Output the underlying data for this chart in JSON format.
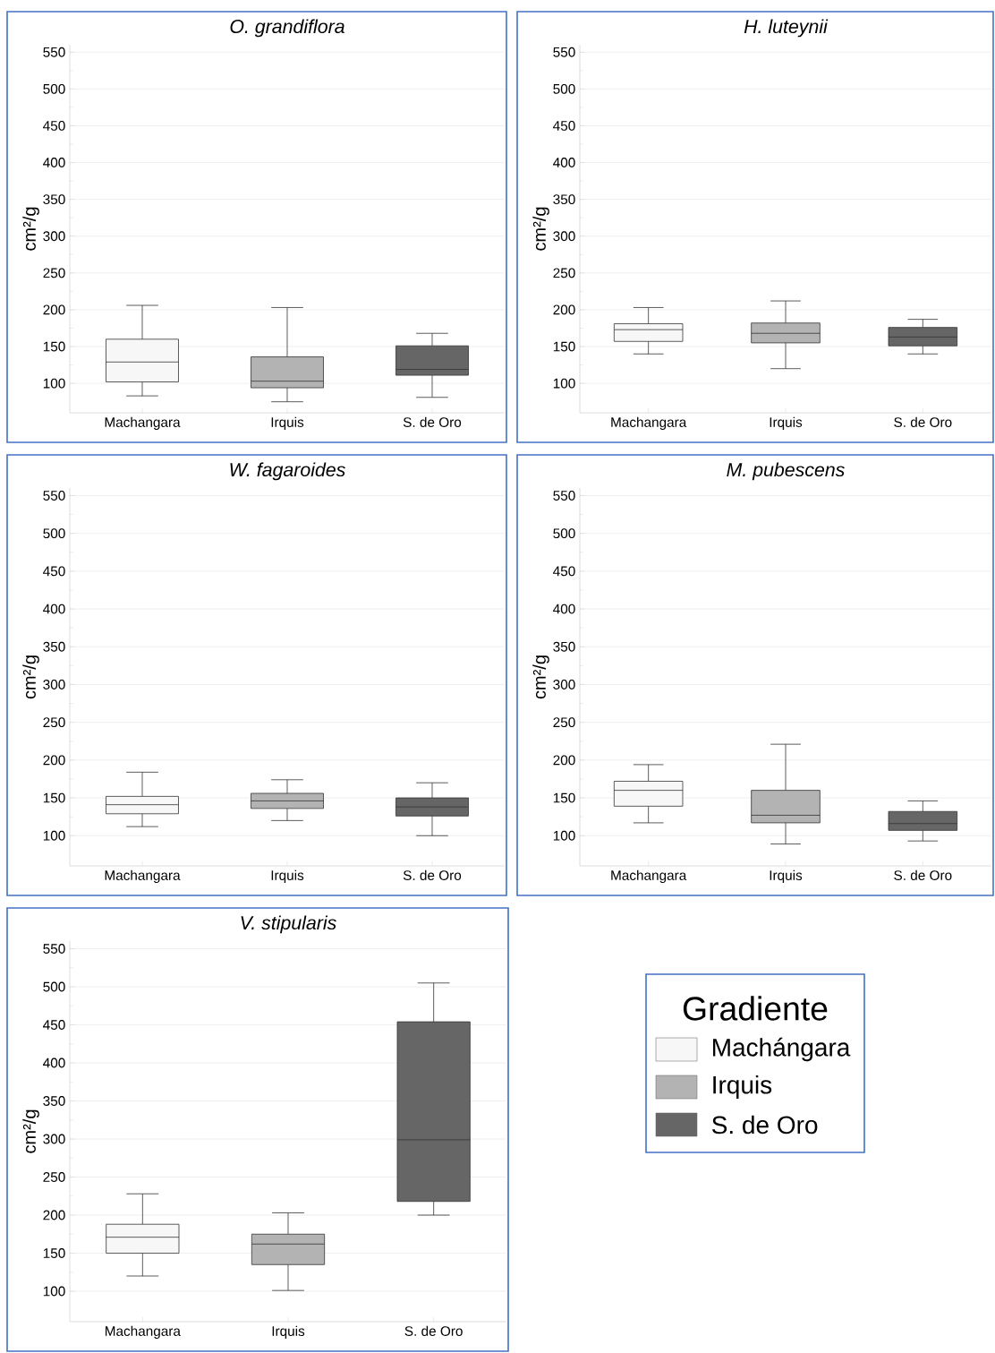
{
  "chart_data": [
    {
      "type": "box",
      "title": "O. grandiflora",
      "ylabel": "cm²/g",
      "categories": [
        "Machangara",
        "Irquis",
        "S. de Oro"
      ],
      "colors": [
        "#f7f7f7",
        "#b3b3b3",
        "#666666"
      ],
      "ylim": [
        60,
        560
      ],
      "yticks": [
        100,
        150,
        200,
        250,
        300,
        350,
        400,
        450,
        500,
        550
      ],
      "grid": "y",
      "boxes": [
        {
          "low": 83,
          "q1": 102,
          "median": 129,
          "q3": 160,
          "high": 206
        },
        {
          "low": 75,
          "q1": 94,
          "median": 103,
          "q3": 136,
          "high": 203
        },
        {
          "low": 81,
          "q1": 111,
          "median": 119,
          "q3": 151,
          "high": 168
        }
      ]
    },
    {
      "type": "box",
      "title": "H. luteynii",
      "ylabel": "cm²/g",
      "categories": [
        "Machangara",
        "Irquis",
        "S. de Oro"
      ],
      "colors": [
        "#f7f7f7",
        "#b3b3b3",
        "#666666"
      ],
      "ylim": [
        60,
        560
      ],
      "yticks": [
        100,
        150,
        200,
        250,
        300,
        350,
        400,
        450,
        500,
        550
      ],
      "grid": "y",
      "boxes": [
        {
          "low": 140,
          "q1": 157,
          "median": 173,
          "q3": 181,
          "high": 203
        },
        {
          "low": 120,
          "q1": 155,
          "median": 168,
          "q3": 182,
          "high": 212
        },
        {
          "low": 140,
          "q1": 151,
          "median": 163,
          "q3": 176,
          "high": 187
        }
      ]
    },
    {
      "type": "box",
      "title": "W. fagaroides",
      "ylabel": "cm²/g",
      "categories": [
        "Machangara",
        "Irquis",
        "S. de Oro"
      ],
      "colors": [
        "#f7f7f7",
        "#b3b3b3",
        "#666666"
      ],
      "ylim": [
        60,
        560
      ],
      "yticks": [
        100,
        150,
        200,
        250,
        300,
        350,
        400,
        450,
        500,
        550
      ],
      "grid": "y",
      "boxes": [
        {
          "low": 112,
          "q1": 129,
          "median": 141,
          "q3": 152,
          "high": 184
        },
        {
          "low": 120,
          "q1": 136,
          "median": 146,
          "q3": 156,
          "high": 174
        },
        {
          "low": 100,
          "q1": 126,
          "median": 138,
          "q3": 150,
          "high": 170
        }
      ]
    },
    {
      "type": "box",
      "title": "M. pubescens",
      "ylabel": "cm²/g",
      "categories": [
        "Machangara",
        "Irquis",
        "S. de Oro"
      ],
      "colors": [
        "#f7f7f7",
        "#b3b3b3",
        "#666666"
      ],
      "ylim": [
        60,
        560
      ],
      "yticks": [
        100,
        150,
        200,
        250,
        300,
        350,
        400,
        450,
        500,
        550
      ],
      "grid": "y",
      "boxes": [
        {
          "low": 117,
          "q1": 139,
          "median": 160,
          "q3": 172,
          "high": 194
        },
        {
          "low": 89,
          "q1": 117,
          "median": 127,
          "q3": 160,
          "high": 221
        },
        {
          "low": 93,
          "q1": 107,
          "median": 116,
          "q3": 132,
          "high": 146
        }
      ]
    },
    {
      "type": "box",
      "title": "V. stipularis",
      "ylabel": "cm²/g",
      "categories": [
        "Machangara",
        "Irquis",
        "S. de Oro"
      ],
      "colors": [
        "#f7f7f7",
        "#b3b3b3",
        "#666666"
      ],
      "ylim": [
        60,
        560
      ],
      "yticks": [
        100,
        150,
        200,
        250,
        300,
        350,
        400,
        450,
        500,
        550
      ],
      "grid": "y",
      "boxes": [
        {
          "low": 120,
          "q1": 150,
          "median": 171,
          "q3": 188,
          "high": 228
        },
        {
          "low": 101,
          "q1": 135,
          "median": 162,
          "q3": 175,
          "high": 203
        },
        {
          "low": 200,
          "q1": 218,
          "median": 299,
          "q3": 454,
          "high": 505
        }
      ]
    },
    {
      "type": "other",
      "legend_title": "Gradiente",
      "categories": [
        "Machángara",
        "Irquis",
        "S. de Oro"
      ],
      "colors": [
        "#f7f7f7",
        "#b3b3b3",
        "#666666"
      ]
    }
  ]
}
